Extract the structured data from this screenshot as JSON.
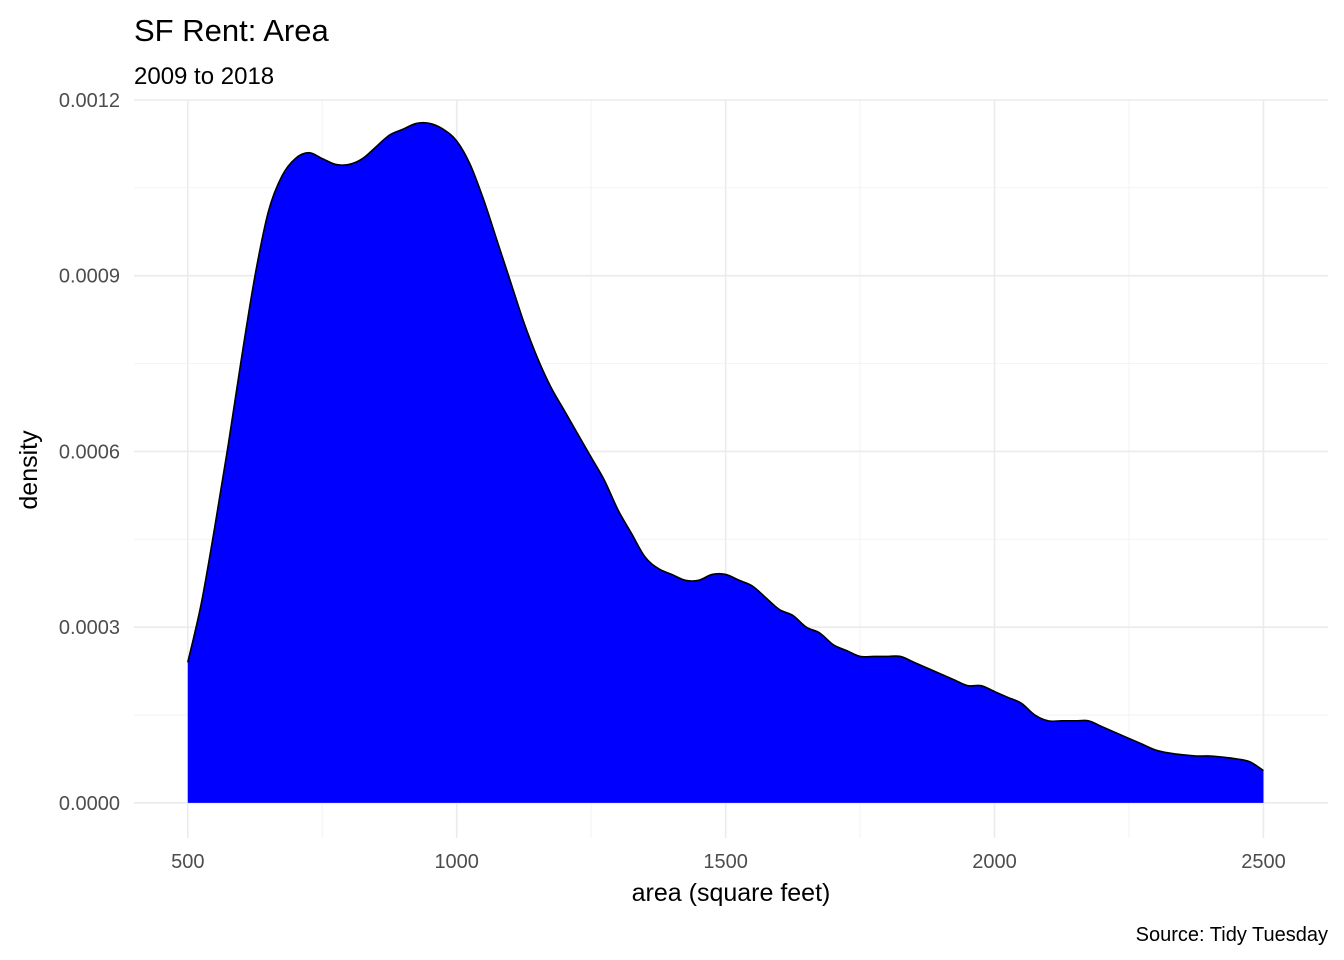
{
  "chart_data": {
    "type": "area",
    "title": "SF Rent: Area",
    "subtitle": "2009 to 2018",
    "xlabel": "area (square feet)",
    "ylabel": "density",
    "caption": "Source: Tidy Tuesday",
    "xlim": [
      400,
      2620
    ],
    "ylim": [
      -6e-05,
      0.0012
    ],
    "x_ticks": [
      500,
      1000,
      1500,
      2000,
      2500
    ],
    "x_tick_labels": [
      "500",
      "1000",
      "1500",
      "2000",
      "2500"
    ],
    "y_ticks": [
      0,
      0.0003,
      0.0006,
      0.0009,
      0.0012
    ],
    "y_tick_labels": [
      "0.0000",
      "0.0003",
      "0.0006",
      "0.0009",
      "0.0012"
    ],
    "grid": true,
    "legend": "none",
    "fill_color": "#0000ff",
    "outline_color": "#000000",
    "x": [
      500,
      525,
      550,
      575,
      600,
      625,
      650,
      675,
      700,
      725,
      750,
      775,
      800,
      825,
      850,
      875,
      900,
      925,
      950,
      975,
      1000,
      1025,
      1050,
      1075,
      1100,
      1125,
      1150,
      1175,
      1200,
      1225,
      1250,
      1275,
      1300,
      1325,
      1350,
      1375,
      1400,
      1425,
      1450,
      1475,
      1500,
      1525,
      1550,
      1575,
      1600,
      1625,
      1650,
      1675,
      1700,
      1725,
      1750,
      1775,
      1800,
      1825,
      1850,
      1875,
      1900,
      1925,
      1950,
      1975,
      2000,
      2025,
      2050,
      2075,
      2100,
      2125,
      2150,
      2175,
      2200,
      2225,
      2250,
      2275,
      2300,
      2325,
      2350,
      2375,
      2400,
      2425,
      2450,
      2475,
      2500
    ],
    "y": [
      0.00024,
      0.00034,
      0.00047,
      0.00061,
      0.00076,
      0.0009,
      0.00101,
      0.00107,
      0.0011,
      0.00111,
      0.0011,
      0.00109,
      0.00109,
      0.0011,
      0.00112,
      0.00114,
      0.00115,
      0.00116,
      0.00116,
      0.00115,
      0.00113,
      0.00109,
      0.00103,
      0.00096,
      0.00089,
      0.00082,
      0.00076,
      0.00071,
      0.00067,
      0.00063,
      0.00059,
      0.00055,
      0.0005,
      0.00046,
      0.00042,
      0.0004,
      0.00039,
      0.00038,
      0.00038,
      0.00039,
      0.00039,
      0.00038,
      0.00037,
      0.00035,
      0.00033,
      0.00032,
      0.0003,
      0.00029,
      0.00027,
      0.00026,
      0.00025,
      0.00025,
      0.00025,
      0.00025,
      0.00024,
      0.00023,
      0.00022,
      0.00021,
      0.0002,
      0.0002,
      0.00019,
      0.00018,
      0.00017,
      0.00015,
      0.00014,
      0.00014,
      0.00014,
      0.00014,
      0.00013,
      0.00012,
      0.00011,
      0.0001,
      9e-05,
      8.5e-05,
      8.2e-05,
      8e-05,
      8e-05,
      7.8e-05,
      7.5e-05,
      7e-05,
      5.5e-05
    ]
  }
}
